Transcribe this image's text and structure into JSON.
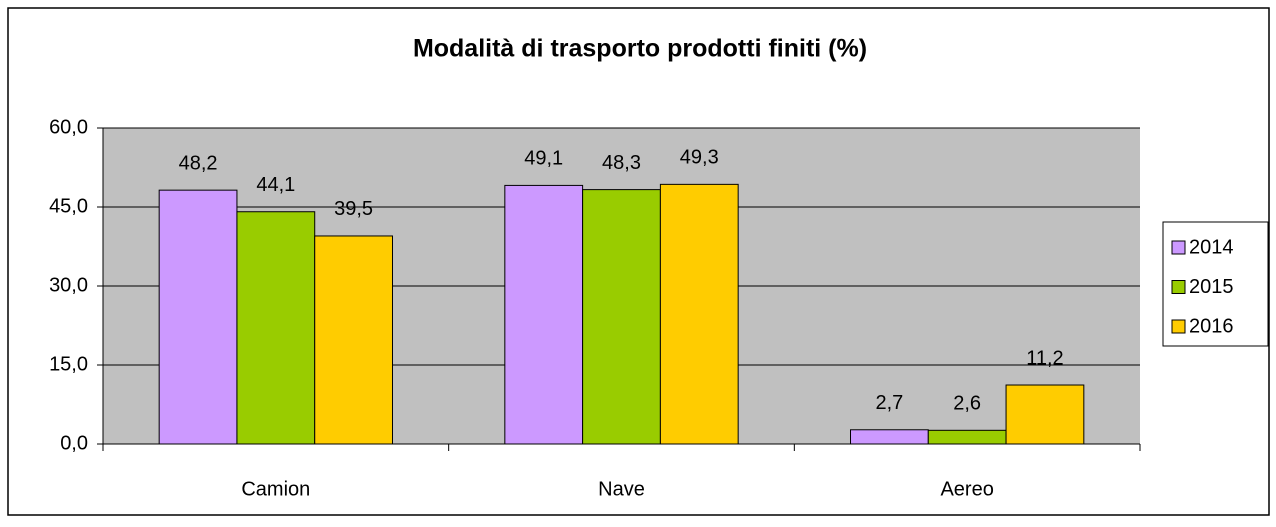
{
  "chart_data": {
    "type": "bar",
    "title": "Modalità di trasporto prodotti finiti (%)",
    "categories": [
      "Camion",
      "Nave",
      "Aereo"
    ],
    "series": [
      {
        "name": "2014",
        "color": "#cc99ff",
        "values": [
          48.2,
          49.1,
          2.7
        ],
        "value_labels": [
          "48,2",
          "49,1",
          "2,7"
        ]
      },
      {
        "name": "2015",
        "color": "#99cc00",
        "values": [
          44.1,
          48.3,
          2.6
        ],
        "value_labels": [
          "44,1",
          "48,3",
          "2,6"
        ]
      },
      {
        "name": "2016",
        "color": "#ffcc00",
        "values": [
          39.5,
          49.3,
          11.2
        ],
        "value_labels": [
          "39,5",
          "49,3",
          "11,2"
        ]
      }
    ],
    "ylim": [
      0,
      60
    ],
    "yticks": [
      {
        "value": 0,
        "label": "0,0"
      },
      {
        "value": 15,
        "label": "15,0"
      },
      {
        "value": 30,
        "label": "30,0"
      },
      {
        "value": 45,
        "label": "45,0"
      },
      {
        "value": 60,
        "label": "60,0"
      }
    ],
    "grid": true,
    "legend": "right"
  }
}
